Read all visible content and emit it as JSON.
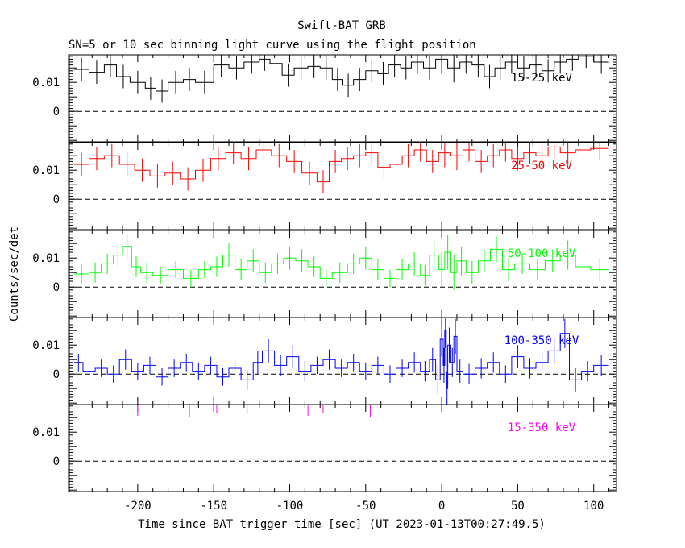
{
  "chart_data": {
    "type": "line",
    "style": "step",
    "title": "Swift-BAT GRB",
    "subtitle": "SN=5 or 10 sec binning light curve using the flight position",
    "xlabel": "Time since BAT trigger time [sec] (UT 2023-01-13T00:27:49.5)",
    "ylabel": "Counts/sec/det",
    "xlim": [
      -245,
      115
    ],
    "xticks": [
      -200,
      -150,
      -100,
      -50,
      0,
      50,
      100
    ],
    "ylim": [
      -0.0105,
      0.0195
    ],
    "yticks": [
      0,
      0.01
    ],
    "ytick_labels": [
      "0",
      "0.01"
    ],
    "zero_line": "dashed",
    "panels": [
      {
        "band": "15-25 keV",
        "color": "#000000",
        "bins": [
          [
            -242,
            -232,
            0.0145,
            0.004
          ],
          [
            -232,
            -222,
            0.0135,
            0.004
          ],
          [
            -222,
            -214,
            0.016,
            0.004
          ],
          [
            -214,
            -205,
            0.012,
            0.004
          ],
          [
            -205,
            -195,
            0.01,
            0.004
          ],
          [
            -195,
            -188,
            0.008,
            0.004
          ],
          [
            -188,
            -180,
            0.007,
            0.004
          ],
          [
            -180,
            -170,
            0.01,
            0.004
          ],
          [
            -170,
            -162,
            0.011,
            0.004
          ],
          [
            -162,
            -150,
            0.01,
            0.004
          ],
          [
            -150,
            -140,
            0.016,
            0.004
          ],
          [
            -140,
            -130,
            0.015,
            0.004
          ],
          [
            -130,
            -120,
            0.017,
            0.004
          ],
          [
            -120,
            -113,
            0.018,
            0.004
          ],
          [
            -113,
            -105,
            0.0165,
            0.004
          ],
          [
            -105,
            -97,
            0.0125,
            0.004
          ],
          [
            -97,
            -88,
            0.015,
            0.004
          ],
          [
            -88,
            -80,
            0.0155,
            0.004
          ],
          [
            -80,
            -72,
            0.015,
            0.004
          ],
          [
            -72,
            -65,
            0.011,
            0.004
          ],
          [
            -65,
            -58,
            0.009,
            0.004
          ],
          [
            -58,
            -50,
            0.011,
            0.004
          ],
          [
            -50,
            -42,
            0.014,
            0.004
          ],
          [
            -42,
            -35,
            0.013,
            0.004
          ],
          [
            -35,
            -27,
            0.016,
            0.004
          ],
          [
            -27,
            -20,
            0.015,
            0.004
          ],
          [
            -20,
            -12,
            0.017,
            0.004
          ],
          [
            -12,
            -4,
            0.015,
            0.004
          ],
          [
            -4,
            4,
            0.018,
            0.005
          ],
          [
            4,
            12,
            0.015,
            0.005
          ],
          [
            12,
            20,
            0.017,
            0.004
          ],
          [
            20,
            28,
            0.016,
            0.004
          ],
          [
            28,
            35,
            0.012,
            0.004
          ],
          [
            35,
            42,
            0.015,
            0.004
          ],
          [
            42,
            50,
            0.017,
            0.004
          ],
          [
            50,
            58,
            0.015,
            0.004
          ],
          [
            58,
            66,
            0.016,
            0.004
          ],
          [
            66,
            74,
            0.014,
            0.004
          ],
          [
            74,
            82,
            0.017,
            0.004
          ],
          [
            82,
            90,
            0.018,
            0.004
          ],
          [
            90,
            100,
            0.019,
            0.004
          ],
          [
            100,
            110,
            0.017,
            0.004
          ]
        ]
      },
      {
        "band": "25-50 keV",
        "color": "#ff0000",
        "bins": [
          [
            -242,
            -232,
            0.012,
            0.004
          ],
          [
            -232,
            -222,
            0.014,
            0.004
          ],
          [
            -222,
            -212,
            0.015,
            0.004
          ],
          [
            -212,
            -202,
            0.012,
            0.004
          ],
          [
            -202,
            -192,
            0.01,
            0.004
          ],
          [
            -192,
            -182,
            0.008,
            0.004
          ],
          [
            -182,
            -172,
            0.009,
            0.004
          ],
          [
            -172,
            -162,
            0.007,
            0.004
          ],
          [
            -162,
            -152,
            0.01,
            0.004
          ],
          [
            -152,
            -142,
            0.014,
            0.004
          ],
          [
            -142,
            -132,
            0.016,
            0.004
          ],
          [
            -132,
            -122,
            0.014,
            0.004
          ],
          [
            -122,
            -112,
            0.017,
            0.004
          ],
          [
            -112,
            -102,
            0.015,
            0.004
          ],
          [
            -102,
            -92,
            0.013,
            0.004
          ],
          [
            -92,
            -82,
            0.009,
            0.004
          ],
          [
            -82,
            -74,
            0.006,
            0.004
          ],
          [
            -74,
            -66,
            0.013,
            0.004
          ],
          [
            -66,
            -58,
            0.014,
            0.004
          ],
          [
            -58,
            -50,
            0.015,
            0.004
          ],
          [
            -50,
            -42,
            0.016,
            0.004
          ],
          [
            -42,
            -34,
            0.011,
            0.004
          ],
          [
            -34,
            -26,
            0.012,
            0.004
          ],
          [
            -26,
            -18,
            0.015,
            0.004
          ],
          [
            -18,
            -10,
            0.017,
            0.004
          ],
          [
            -10,
            -2,
            0.013,
            0.004
          ],
          [
            -2,
            6,
            0.016,
            0.005
          ],
          [
            6,
            14,
            0.015,
            0.005
          ],
          [
            14,
            22,
            0.017,
            0.004
          ],
          [
            22,
            30,
            0.013,
            0.004
          ],
          [
            30,
            38,
            0.015,
            0.004
          ],
          [
            38,
            46,
            0.017,
            0.004
          ],
          [
            46,
            54,
            0.014,
            0.004
          ],
          [
            54,
            62,
            0.016,
            0.004
          ],
          [
            62,
            70,
            0.015,
            0.004
          ],
          [
            70,
            78,
            0.018,
            0.004
          ],
          [
            78,
            88,
            0.016,
            0.004
          ],
          [
            88,
            98,
            0.017,
            0.004
          ],
          [
            98,
            110,
            0.0175,
            0.004
          ]
        ]
      },
      {
        "band": "50-100 keV",
        "color": "#00ff00",
        "bins": [
          [
            -242,
            -232,
            0.0045,
            0.0035
          ],
          [
            -232,
            -224,
            0.005,
            0.0035
          ],
          [
            -224,
            -216,
            0.008,
            0.0035
          ],
          [
            -216,
            -210,
            0.011,
            0.004
          ],
          [
            -210,
            -204,
            0.014,
            0.0045
          ],
          [
            -204,
            -198,
            0.007,
            0.0035
          ],
          [
            -198,
            -190,
            0.005,
            0.0035
          ],
          [
            -190,
            -180,
            0.004,
            0.003
          ],
          [
            -180,
            -170,
            0.006,
            0.003
          ],
          [
            -170,
            -160,
            0.003,
            0.003
          ],
          [
            -160,
            -152,
            0.006,
            0.003
          ],
          [
            -152,
            -144,
            0.007,
            0.0035
          ],
          [
            -144,
            -136,
            0.011,
            0.004
          ],
          [
            -136,
            -128,
            0.006,
            0.0035
          ],
          [
            -128,
            -120,
            0.009,
            0.004
          ],
          [
            -120,
            -112,
            0.005,
            0.0035
          ],
          [
            -112,
            -104,
            0.008,
            0.0035
          ],
          [
            -104,
            -96,
            0.01,
            0.004
          ],
          [
            -96,
            -88,
            0.009,
            0.004
          ],
          [
            -88,
            -80,
            0.007,
            0.0035
          ],
          [
            -80,
            -72,
            0.003,
            0.003
          ],
          [
            -72,
            -62,
            0.005,
            0.0035
          ],
          [
            -62,
            -54,
            0.008,
            0.0035
          ],
          [
            -54,
            -46,
            0.01,
            0.004
          ],
          [
            -46,
            -38,
            0.006,
            0.0035
          ],
          [
            -38,
            -30,
            0.003,
            0.003
          ],
          [
            -30,
            -22,
            0.006,
            0.0035
          ],
          [
            -22,
            -14,
            0.008,
            0.004
          ],
          [
            -14,
            -8,
            0.004,
            0.0035
          ],
          [
            -8,
            -2,
            0.011,
            0.005
          ],
          [
            -2,
            2,
            0.006,
            0.006
          ],
          [
            2,
            6,
            0.012,
            0.006
          ],
          [
            6,
            10,
            0.005,
            0.006
          ],
          [
            10,
            16,
            0.009,
            0.005
          ],
          [
            16,
            24,
            0.005,
            0.004
          ],
          [
            24,
            32,
            0.009,
            0.004
          ],
          [
            32,
            40,
            0.013,
            0.0045
          ],
          [
            40,
            48,
            0.006,
            0.004
          ],
          [
            48,
            58,
            0.008,
            0.0035
          ],
          [
            58,
            68,
            0.006,
            0.0035
          ],
          [
            68,
            78,
            0.009,
            0.004
          ],
          [
            78,
            88,
            0.011,
            0.005
          ],
          [
            88,
            98,
            0.007,
            0.004
          ],
          [
            98,
            110,
            0.006,
            0.004
          ]
        ]
      },
      {
        "band": "100-350 keV",
        "color": "#0000ff",
        "bins": [
          [
            -242,
            -236,
            0.004,
            0.003
          ],
          [
            -236,
            -228,
            0.001,
            0.003
          ],
          [
            -228,
            -220,
            0.002,
            0.003
          ],
          [
            -220,
            -212,
            0.0,
            0.003
          ],
          [
            -212,
            -204,
            0.005,
            0.0035
          ],
          [
            -204,
            -196,
            0.001,
            0.003
          ],
          [
            -196,
            -188,
            0.003,
            0.003
          ],
          [
            -188,
            -180,
            -0.001,
            0.003
          ],
          [
            -180,
            -172,
            0.002,
            0.003
          ],
          [
            -172,
            -164,
            0.004,
            0.003
          ],
          [
            -164,
            -156,
            0.001,
            0.003
          ],
          [
            -156,
            -148,
            0.003,
            0.003
          ],
          [
            -148,
            -140,
            -0.001,
            0.003
          ],
          [
            -140,
            -132,
            0.002,
            0.003
          ],
          [
            -132,
            -124,
            -0.002,
            0.0035
          ],
          [
            -124,
            -118,
            0.004,
            0.004
          ],
          [
            -118,
            -110,
            0.008,
            0.004
          ],
          [
            -110,
            -102,
            0.003,
            0.0035
          ],
          [
            -102,
            -94,
            0.006,
            0.004
          ],
          [
            -94,
            -86,
            0.001,
            0.0035
          ],
          [
            -86,
            -78,
            0.003,
            0.003
          ],
          [
            -78,
            -70,
            0.005,
            0.0035
          ],
          [
            -70,
            -62,
            0.002,
            0.003
          ],
          [
            -62,
            -54,
            0.004,
            0.003
          ],
          [
            -54,
            -46,
            0.001,
            0.003
          ],
          [
            -46,
            -38,
            0.003,
            0.003
          ],
          [
            -38,
            -30,
            0.0,
            0.003
          ],
          [
            -30,
            -22,
            0.002,
            0.003
          ],
          [
            -22,
            -14,
            0.004,
            0.0035
          ],
          [
            -14,
            -8,
            0.001,
            0.0035
          ],
          [
            -8,
            -4,
            0.005,
            0.004
          ],
          [
            -4,
            -1,
            -0.002,
            0.005
          ],
          [
            -1,
            1,
            0.012,
            0.006
          ],
          [
            1,
            2,
            0.003,
            0.006
          ],
          [
            2,
            3,
            0.015,
            0.006
          ],
          [
            3,
            4,
            -0.005,
            0.006
          ],
          [
            4,
            6,
            0.01,
            0.006
          ],
          [
            6,
            8,
            0.004,
            0.005
          ],
          [
            8,
            10,
            0.013,
            0.006
          ],
          [
            10,
            14,
            0.001,
            0.004
          ],
          [
            14,
            22,
            0.0,
            0.0035
          ],
          [
            22,
            30,
            0.002,
            0.0035
          ],
          [
            30,
            38,
            0.004,
            0.0035
          ],
          [
            38,
            46,
            0.0,
            0.003
          ],
          [
            46,
            54,
            0.006,
            0.004
          ],
          [
            54,
            62,
            0.002,
            0.0035
          ],
          [
            62,
            70,
            0.004,
            0.0035
          ],
          [
            70,
            78,
            0.008,
            0.0045
          ],
          [
            78,
            84,
            0.014,
            0.005
          ],
          [
            84,
            92,
            -0.002,
            0.004
          ],
          [
            92,
            100,
            0.001,
            0.0035
          ],
          [
            100,
            110,
            0.003,
            0.0035
          ]
        ]
      },
      {
        "band": "15-350 keV",
        "color": "#ff00ff",
        "bins": [],
        "stubs_x": [
          -200,
          -188,
          -166,
          -148,
          -128,
          -88,
          -78,
          -47
        ]
      }
    ]
  }
}
